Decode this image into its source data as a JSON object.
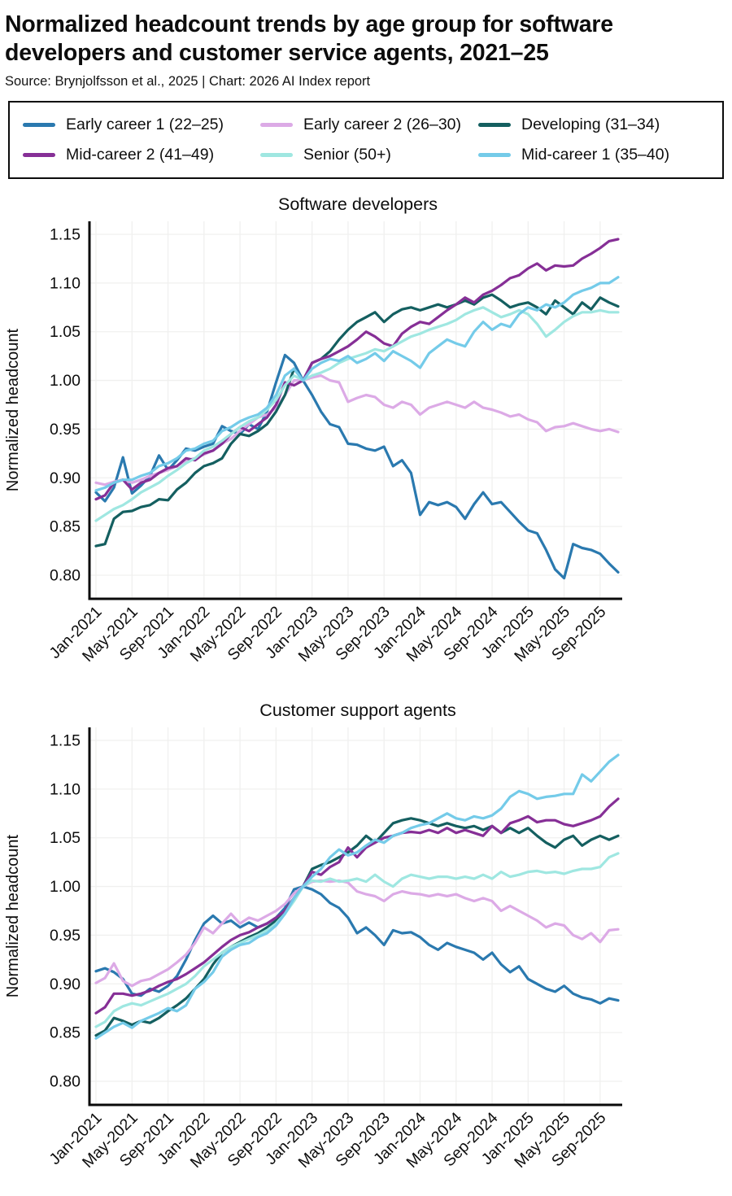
{
  "page": {
    "title": "Normalized headcount trends by age group for software developers and customer service agents, 2021–25",
    "source": "Source: Brynjolfsson et al., 2025 | Chart: 2026 AI Index report"
  },
  "colors": {
    "early_career_1": "#2a79af",
    "early_career_2": "#dcaae6",
    "developing": "#145f60",
    "mid_career_2": "#862f96",
    "senior": "#9fe7e1",
    "mid_career_1": "#74cbe9",
    "axis": "#0a0a0a",
    "grid": "#f0f0ef"
  },
  "legend": {
    "items": [
      {
        "label": "Early career 1 (22–25)",
        "color": "#2a79af"
      },
      {
        "label": "Early career 2 (26–30)",
        "color": "#dcaae6"
      },
      {
        "label": "Developing (31–34)",
        "color": "#145f60"
      },
      {
        "label": "Mid-career 2 (41–49)",
        "color": "#862f96"
      },
      {
        "label": "Senior (50+)",
        "color": "#9fe7e1"
      },
      {
        "label": "Mid-career 1 (35–40)",
        "color": "#74cbe9"
      }
    ]
  },
  "chart_data": [
    {
      "type": "line",
      "title": "Software developers",
      "ylabel": "Normalized headcount",
      "ylim": [
        0.78,
        1.17
      ],
      "yticks": [
        1.15,
        1.1,
        1.05,
        1.0,
        0.95,
        0.9,
        0.85,
        0.8
      ],
      "ytick_labels": [
        "1.15",
        "1.10",
        "1.05",
        "1.00",
        "0.95",
        "0.90",
        "0.85",
        "0.80"
      ],
      "grid": true,
      "legend_position": "top-outside",
      "xtick_every": 4,
      "x": [
        "Jan-2021",
        "Feb-2021",
        "Mar-2021",
        "Apr-2021",
        "May-2021",
        "Jun-2021",
        "Jul-2021",
        "Aug-2021",
        "Sep-2021",
        "Oct-2021",
        "Nov-2021",
        "Dec-2021",
        "Jan-2022",
        "Feb-2022",
        "Mar-2022",
        "Apr-2022",
        "May-2022",
        "Jun-2022",
        "Jul-2022",
        "Aug-2022",
        "Sep-2022",
        "Oct-2022",
        "Nov-2022",
        "Dec-2022",
        "Jan-2023",
        "Feb-2023",
        "Mar-2023",
        "Apr-2023",
        "May-2023",
        "Jun-2023",
        "Jul-2023",
        "Aug-2023",
        "Sep-2023",
        "Oct-2023",
        "Nov-2023",
        "Dec-2023",
        "Jan-2024",
        "Feb-2024",
        "Mar-2024",
        "Apr-2024",
        "May-2024",
        "Jun-2024",
        "Jul-2024",
        "Aug-2024",
        "Sep-2024",
        "Oct-2024",
        "Nov-2024",
        "Dec-2024",
        "Jan-2025",
        "Feb-2025",
        "Mar-2025",
        "Apr-2025",
        "May-2025",
        "Jun-2025",
        "Jul-2025",
        "Aug-2025",
        "Sep-2025",
        "Oct-2025",
        "Nov-2025"
      ],
      "series": [
        {
          "name": "Early career 1 (22–25)",
          "color": "#2a79af",
          "values": [
            0.885,
            0.876,
            0.89,
            0.921,
            0.884,
            0.892,
            0.902,
            0.923,
            0.908,
            0.918,
            0.93,
            0.928,
            0.932,
            0.935,
            0.953,
            0.948,
            0.945,
            0.955,
            0.95,
            0.968,
            0.998,
            1.026,
            1.018,
            1.0,
            0.985,
            0.968,
            0.955,
            0.952,
            0.935,
            0.934,
            0.93,
            0.928,
            0.932,
            0.912,
            0.918,
            0.905,
            0.862,
            0.875,
            0.872,
            0.875,
            0.87,
            0.858,
            0.873,
            0.885,
            0.873,
            0.875,
            0.865,
            0.855,
            0.846,
            0.843,
            0.826,
            0.806,
            0.797,
            0.832,
            0.828,
            0.826,
            0.822,
            0.812,
            0.803
          ]
        },
        {
          "name": "Early career 2 (26–30)",
          "color": "#dcaae6",
          "values": [
            0.895,
            0.893,
            0.896,
            0.898,
            0.895,
            0.898,
            0.902,
            0.905,
            0.908,
            0.912,
            0.918,
            0.92,
            0.924,
            0.928,
            0.935,
            0.94,
            0.948,
            0.955,
            0.962,
            0.965,
            0.972,
            0.985,
            1.0,
            1.0,
            1.003,
            1.005,
            1.0,
            0.998,
            0.978,
            0.982,
            0.985,
            0.983,
            0.975,
            0.972,
            0.978,
            0.975,
            0.965,
            0.972,
            0.975,
            0.978,
            0.975,
            0.972,
            0.978,
            0.972,
            0.97,
            0.967,
            0.963,
            0.965,
            0.96,
            0.957,
            0.948,
            0.952,
            0.953,
            0.956,
            0.953,
            0.95,
            0.948,
            0.95,
            0.947
          ]
        },
        {
          "name": "Developing (31–34)",
          "color": "#145f60",
          "values": [
            0.83,
            0.832,
            0.858,
            0.865,
            0.866,
            0.87,
            0.872,
            0.878,
            0.877,
            0.888,
            0.895,
            0.905,
            0.912,
            0.915,
            0.92,
            0.935,
            0.945,
            0.943,
            0.948,
            0.955,
            0.968,
            0.985,
            1.012,
            1.0,
            1.018,
            1.022,
            1.03,
            1.042,
            1.052,
            1.06,
            1.065,
            1.07,
            1.06,
            1.068,
            1.073,
            1.075,
            1.072,
            1.075,
            1.078,
            1.075,
            1.078,
            1.082,
            1.078,
            1.085,
            1.088,
            1.082,
            1.075,
            1.078,
            1.08,
            1.075,
            1.068,
            1.082,
            1.075,
            1.068,
            1.08,
            1.073,
            1.085,
            1.08,
            1.076
          ]
        },
        {
          "name": "Mid-career 2 (41–49)",
          "color": "#862f96",
          "values": [
            0.878,
            0.882,
            0.895,
            0.898,
            0.888,
            0.895,
            0.898,
            0.905,
            0.91,
            0.912,
            0.92,
            0.918,
            0.925,
            0.928,
            0.935,
            0.945,
            0.952,
            0.948,
            0.955,
            0.962,
            0.975,
            0.998,
            0.995,
            1.0,
            1.018,
            1.022,
            1.025,
            1.03,
            1.035,
            1.042,
            1.05,
            1.045,
            1.038,
            1.035,
            1.048,
            1.055,
            1.06,
            1.058,
            1.065,
            1.072,
            1.078,
            1.085,
            1.08,
            1.088,
            1.092,
            1.098,
            1.105,
            1.108,
            1.115,
            1.12,
            1.113,
            1.118,
            1.117,
            1.118,
            1.125,
            1.13,
            1.136,
            1.143,
            1.145
          ]
        },
        {
          "name": "Senior (50+)",
          "color": "#9fe7e1",
          "values": [
            0.856,
            0.862,
            0.868,
            0.872,
            0.878,
            0.885,
            0.89,
            0.895,
            0.902,
            0.908,
            0.915,
            0.92,
            0.928,
            0.932,
            0.938,
            0.945,
            0.952,
            0.958,
            0.962,
            0.97,
            0.98,
            0.995,
            1.005,
            1.0,
            1.005,
            1.008,
            1.012,
            1.018,
            1.022,
            1.025,
            1.028,
            1.032,
            1.03,
            1.035,
            1.04,
            1.045,
            1.048,
            1.052,
            1.055,
            1.058,
            1.062,
            1.068,
            1.072,
            1.075,
            1.07,
            1.065,
            1.068,
            1.072,
            1.068,
            1.058,
            1.045,
            1.052,
            1.06,
            1.066,
            1.07,
            1.07,
            1.072,
            1.07,
            1.07
          ]
        },
        {
          "name": "Mid-career 1 (35–40)",
          "color": "#74cbe9",
          "values": [
            0.887,
            0.89,
            0.895,
            0.898,
            0.898,
            0.902,
            0.905,
            0.912,
            0.915,
            0.92,
            0.928,
            0.93,
            0.935,
            0.938,
            0.948,
            0.952,
            0.958,
            0.962,
            0.965,
            0.972,
            0.985,
            1.005,
            1.012,
            1.0,
            1.012,
            1.018,
            1.022,
            1.02,
            1.025,
            1.018,
            1.022,
            1.028,
            1.02,
            1.03,
            1.025,
            1.02,
            1.013,
            1.028,
            1.035,
            1.042,
            1.038,
            1.035,
            1.05,
            1.06,
            1.052,
            1.058,
            1.055,
            1.068,
            1.075,
            1.072,
            1.078,
            1.075,
            1.08,
            1.088,
            1.092,
            1.095,
            1.1,
            1.1,
            1.106
          ]
        }
      ]
    },
    {
      "type": "line",
      "title": "Customer support agents",
      "ylabel": "Normalized headcount",
      "ylim": [
        0.78,
        1.17
      ],
      "yticks": [
        1.15,
        1.1,
        1.05,
        1.0,
        0.95,
        0.9,
        0.85,
        0.8
      ],
      "ytick_labels": [
        "1.15",
        "1.10",
        "1.05",
        "1.00",
        "0.95",
        "0.90",
        "0.85",
        "0.80"
      ],
      "grid": true,
      "legend_position": "top-outside",
      "xtick_every": 4,
      "x": [
        "Jan-2021",
        "Feb-2021",
        "Mar-2021",
        "Apr-2021",
        "May-2021",
        "Jun-2021",
        "Jul-2021",
        "Aug-2021",
        "Sep-2021",
        "Oct-2021",
        "Nov-2021",
        "Dec-2021",
        "Jan-2022",
        "Feb-2022",
        "Mar-2022",
        "Apr-2022",
        "May-2022",
        "Jun-2022",
        "Jul-2022",
        "Aug-2022",
        "Sep-2022",
        "Oct-2022",
        "Nov-2022",
        "Dec-2022",
        "Jan-2023",
        "Feb-2023",
        "Mar-2023",
        "Apr-2023",
        "May-2023",
        "Jun-2023",
        "Jul-2023",
        "Aug-2023",
        "Sep-2023",
        "Oct-2023",
        "Nov-2023",
        "Dec-2023",
        "Jan-2024",
        "Feb-2024",
        "Mar-2024",
        "Apr-2024",
        "May-2024",
        "Jun-2024",
        "Jul-2024",
        "Aug-2024",
        "Sep-2024",
        "Oct-2024",
        "Nov-2024",
        "Dec-2024",
        "Jan-2025",
        "Feb-2025",
        "Mar-2025",
        "Apr-2025",
        "May-2025",
        "Jun-2025",
        "Jul-2025",
        "Aug-2025",
        "Sep-2025",
        "Oct-2025",
        "Nov-2025"
      ],
      "series": [
        {
          "name": "Early career 1 (22–25)",
          "color": "#2a79af",
          "values": [
            0.913,
            0.916,
            0.912,
            0.905,
            0.89,
            0.888,
            0.895,
            0.892,
            0.898,
            0.908,
            0.925,
            0.945,
            0.962,
            0.97,
            0.962,
            0.965,
            0.958,
            0.963,
            0.958,
            0.962,
            0.968,
            0.978,
            0.997,
            1.0,
            0.997,
            0.992,
            0.983,
            0.978,
            0.968,
            0.952,
            0.958,
            0.95,
            0.94,
            0.955,
            0.952,
            0.953,
            0.948,
            0.94,
            0.935,
            0.942,
            0.938,
            0.935,
            0.932,
            0.925,
            0.932,
            0.92,
            0.912,
            0.918,
            0.905,
            0.9,
            0.895,
            0.892,
            0.898,
            0.89,
            0.886,
            0.884,
            0.88,
            0.885,
            0.883
          ]
        },
        {
          "name": "Early career 2 (26–30)",
          "color": "#dcaae6",
          "values": [
            0.901,
            0.906,
            0.921,
            0.903,
            0.898,
            0.903,
            0.905,
            0.91,
            0.915,
            0.922,
            0.93,
            0.942,
            0.958,
            0.952,
            0.962,
            0.972,
            0.962,
            0.968,
            0.965,
            0.97,
            0.975,
            0.982,
            0.993,
            1.0,
            1.005,
            1.006,
            1.005,
            1.006,
            1.004,
            0.995,
            0.992,
            0.99,
            0.985,
            0.992,
            0.995,
            0.993,
            0.992,
            0.99,
            0.992,
            0.99,
            0.992,
            0.988,
            0.985,
            0.988,
            0.985,
            0.975,
            0.98,
            0.975,
            0.97,
            0.965,
            0.958,
            0.962,
            0.96,
            0.95,
            0.946,
            0.952,
            0.943,
            0.955,
            0.956
          ]
        },
        {
          "name": "Developing (31–34)",
          "color": "#145f60",
          "values": [
            0.847,
            0.852,
            0.865,
            0.862,
            0.858,
            0.862,
            0.86,
            0.865,
            0.872,
            0.878,
            0.885,
            0.895,
            0.905,
            0.92,
            0.932,
            0.938,
            0.943,
            0.948,
            0.952,
            0.958,
            0.965,
            0.975,
            0.988,
            1.0,
            1.018,
            1.022,
            1.025,
            1.03,
            1.035,
            1.042,
            1.052,
            1.045,
            1.055,
            1.065,
            1.068,
            1.07,
            1.068,
            1.065,
            1.062,
            1.065,
            1.062,
            1.06,
            1.062,
            1.058,
            1.062,
            1.055,
            1.06,
            1.055,
            1.06,
            1.052,
            1.045,
            1.04,
            1.048,
            1.052,
            1.042,
            1.048,
            1.052,
            1.048,
            1.052
          ]
        },
        {
          "name": "Mid-career 2 (41–49)",
          "color": "#862f96",
          "values": [
            0.87,
            0.876,
            0.89,
            0.89,
            0.888,
            0.89,
            0.893,
            0.898,
            0.902,
            0.905,
            0.91,
            0.916,
            0.922,
            0.93,
            0.938,
            0.945,
            0.95,
            0.953,
            0.958,
            0.962,
            0.968,
            0.975,
            0.988,
            1.0,
            1.015,
            1.012,
            1.02,
            1.025,
            1.04,
            1.03,
            1.04,
            1.045,
            1.05,
            1.052,
            1.055,
            1.056,
            1.055,
            1.058,
            1.055,
            1.06,
            1.055,
            1.058,
            1.055,
            1.052,
            1.062,
            1.055,
            1.065,
            1.068,
            1.072,
            1.066,
            1.068,
            1.068,
            1.064,
            1.062,
            1.065,
            1.068,
            1.072,
            1.082,
            1.09
          ]
        },
        {
          "name": "Senior (50+)",
          "color": "#9fe7e1",
          "values": [
            0.856,
            0.861,
            0.872,
            0.877,
            0.88,
            0.878,
            0.882,
            0.886,
            0.89,
            0.895,
            0.9,
            0.908,
            0.918,
            0.925,
            0.932,
            0.938,
            0.942,
            0.946,
            0.95,
            0.955,
            0.962,
            0.972,
            0.985,
            1.0,
            1.006,
            1.005,
            1.008,
            1.005,
            1.006,
            1.008,
            1.005,
            1.012,
            1.005,
            1.0,
            1.008,
            1.012,
            1.01,
            1.008,
            1.01,
            1.01,
            1.008,
            1.01,
            1.008,
            1.012,
            1.008,
            1.015,
            1.01,
            1.012,
            1.015,
            1.016,
            1.014,
            1.015,
            1.013,
            1.016,
            1.018,
            1.018,
            1.02,
            1.03,
            1.034
          ]
        },
        {
          "name": "Mid-career 1 (35–40)",
          "color": "#74cbe9",
          "values": [
            0.844,
            0.85,
            0.856,
            0.86,
            0.855,
            0.862,
            0.866,
            0.87,
            0.875,
            0.872,
            0.878,
            0.895,
            0.902,
            0.912,
            0.928,
            0.935,
            0.94,
            0.942,
            0.948,
            0.952,
            0.96,
            0.972,
            0.988,
            1.0,
            1.01,
            1.018,
            1.03,
            1.038,
            1.032,
            1.035,
            1.042,
            1.048,
            1.045,
            1.052,
            1.055,
            1.06,
            1.063,
            1.065,
            1.07,
            1.075,
            1.07,
            1.068,
            1.072,
            1.07,
            1.073,
            1.08,
            1.092,
            1.098,
            1.095,
            1.09,
            1.092,
            1.093,
            1.095,
            1.095,
            1.115,
            1.108,
            1.118,
            1.128,
            1.135
          ]
        }
      ]
    }
  ]
}
